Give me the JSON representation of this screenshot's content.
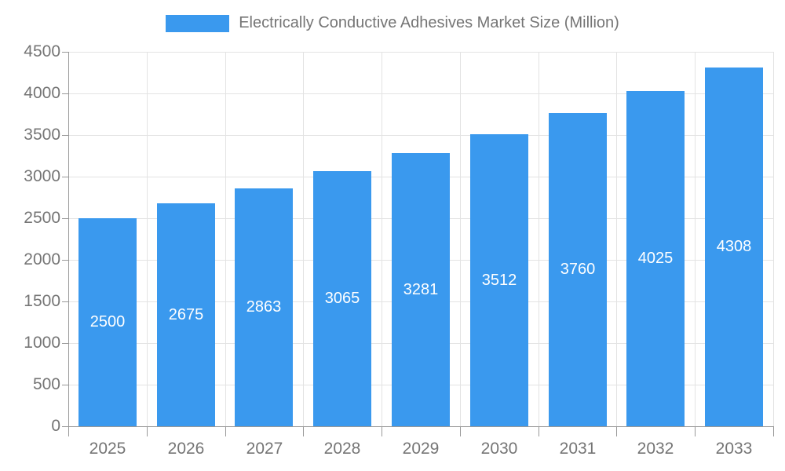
{
  "legend": {
    "label": "Electrically Conductive Adhesives Market Size (Million)",
    "swatch_color": "#3A99EE"
  },
  "chart_data": {
    "type": "bar",
    "title": "Electrically Conductive Adhesives Market Size (Million)",
    "categories": [
      "2025",
      "2026",
      "2027",
      "2028",
      "2029",
      "2030",
      "2031",
      "2032",
      "2033"
    ],
    "values": [
      2500,
      2675,
      2863,
      3065,
      3281,
      3512,
      3760,
      4025,
      4308
    ],
    "xlabel": "",
    "ylabel": "",
    "ylim": [
      0,
      4500
    ],
    "ytick_step": 500,
    "grid": true,
    "legend_position": "top",
    "bar_color": "#3A99EE",
    "value_label_color": "#FFFFFF",
    "axis_text_color": "#757575",
    "grid_color": "#E3E3E3",
    "axis_line_color": "#999999"
  }
}
